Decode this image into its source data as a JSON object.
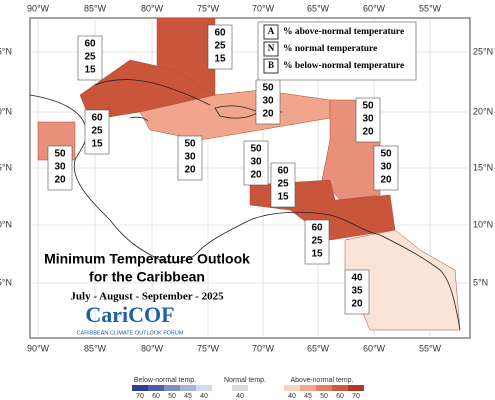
{
  "map": {
    "longitudes": [
      "90°W",
      "85°W",
      "80°W",
      "75°W",
      "70°W",
      "65°W",
      "60°W",
      "55°W"
    ],
    "latitudes": [
      "25°N",
      "20°N",
      "15°N",
      "10°N",
      "5°N"
    ]
  },
  "regions": [
    {
      "probabilities": [
        60,
        25,
        15
      ]
    },
    {
      "probabilities": [
        60,
        25,
        15
      ]
    },
    {
      "probabilities": [
        50,
        30,
        20
      ]
    },
    {
      "probabilities": [
        50,
        30,
        20
      ]
    },
    {
      "probabilities": [
        60,
        25,
        15
      ]
    },
    {
      "probabilities": [
        50,
        30,
        20
      ]
    },
    {
      "probabilities": [
        50,
        30,
        20
      ]
    },
    {
      "probabilities": [
        50,
        30,
        20
      ]
    },
    {
      "probabilities": [
        50,
        30,
        20
      ]
    },
    {
      "probabilities": [
        60,
        25,
        15
      ]
    },
    {
      "probabilities": [
        60,
        25,
        15
      ]
    },
    {
      "probabilities": [
        40,
        35,
        20
      ]
    }
  ],
  "key": [
    {
      "letter": "A",
      "text": "% above-normal temperature"
    },
    {
      "letter": "N",
      "text": "% normal temperature"
    },
    {
      "letter": "B",
      "text": "% below-normal temperature"
    }
  ],
  "title": {
    "line1": "Minimum Temperature Outlook",
    "line2": "for the Caribbean",
    "period": "July - August - September - 2025"
  },
  "logo": {
    "name": "CariCOF",
    "tagline": "CARIBBEAN CLIMATE OUTLOOK FORUM"
  },
  "colorbar": {
    "below": {
      "label": "Below-normal temp.",
      "ticks": [
        70,
        60,
        50,
        45,
        40
      ]
    },
    "normal": {
      "label": "Normal temp.",
      "ticks": [
        40
      ]
    },
    "above": {
      "label": "Above-normal temp.",
      "ticks": [
        40,
        45,
        50,
        60,
        70
      ]
    }
  }
}
